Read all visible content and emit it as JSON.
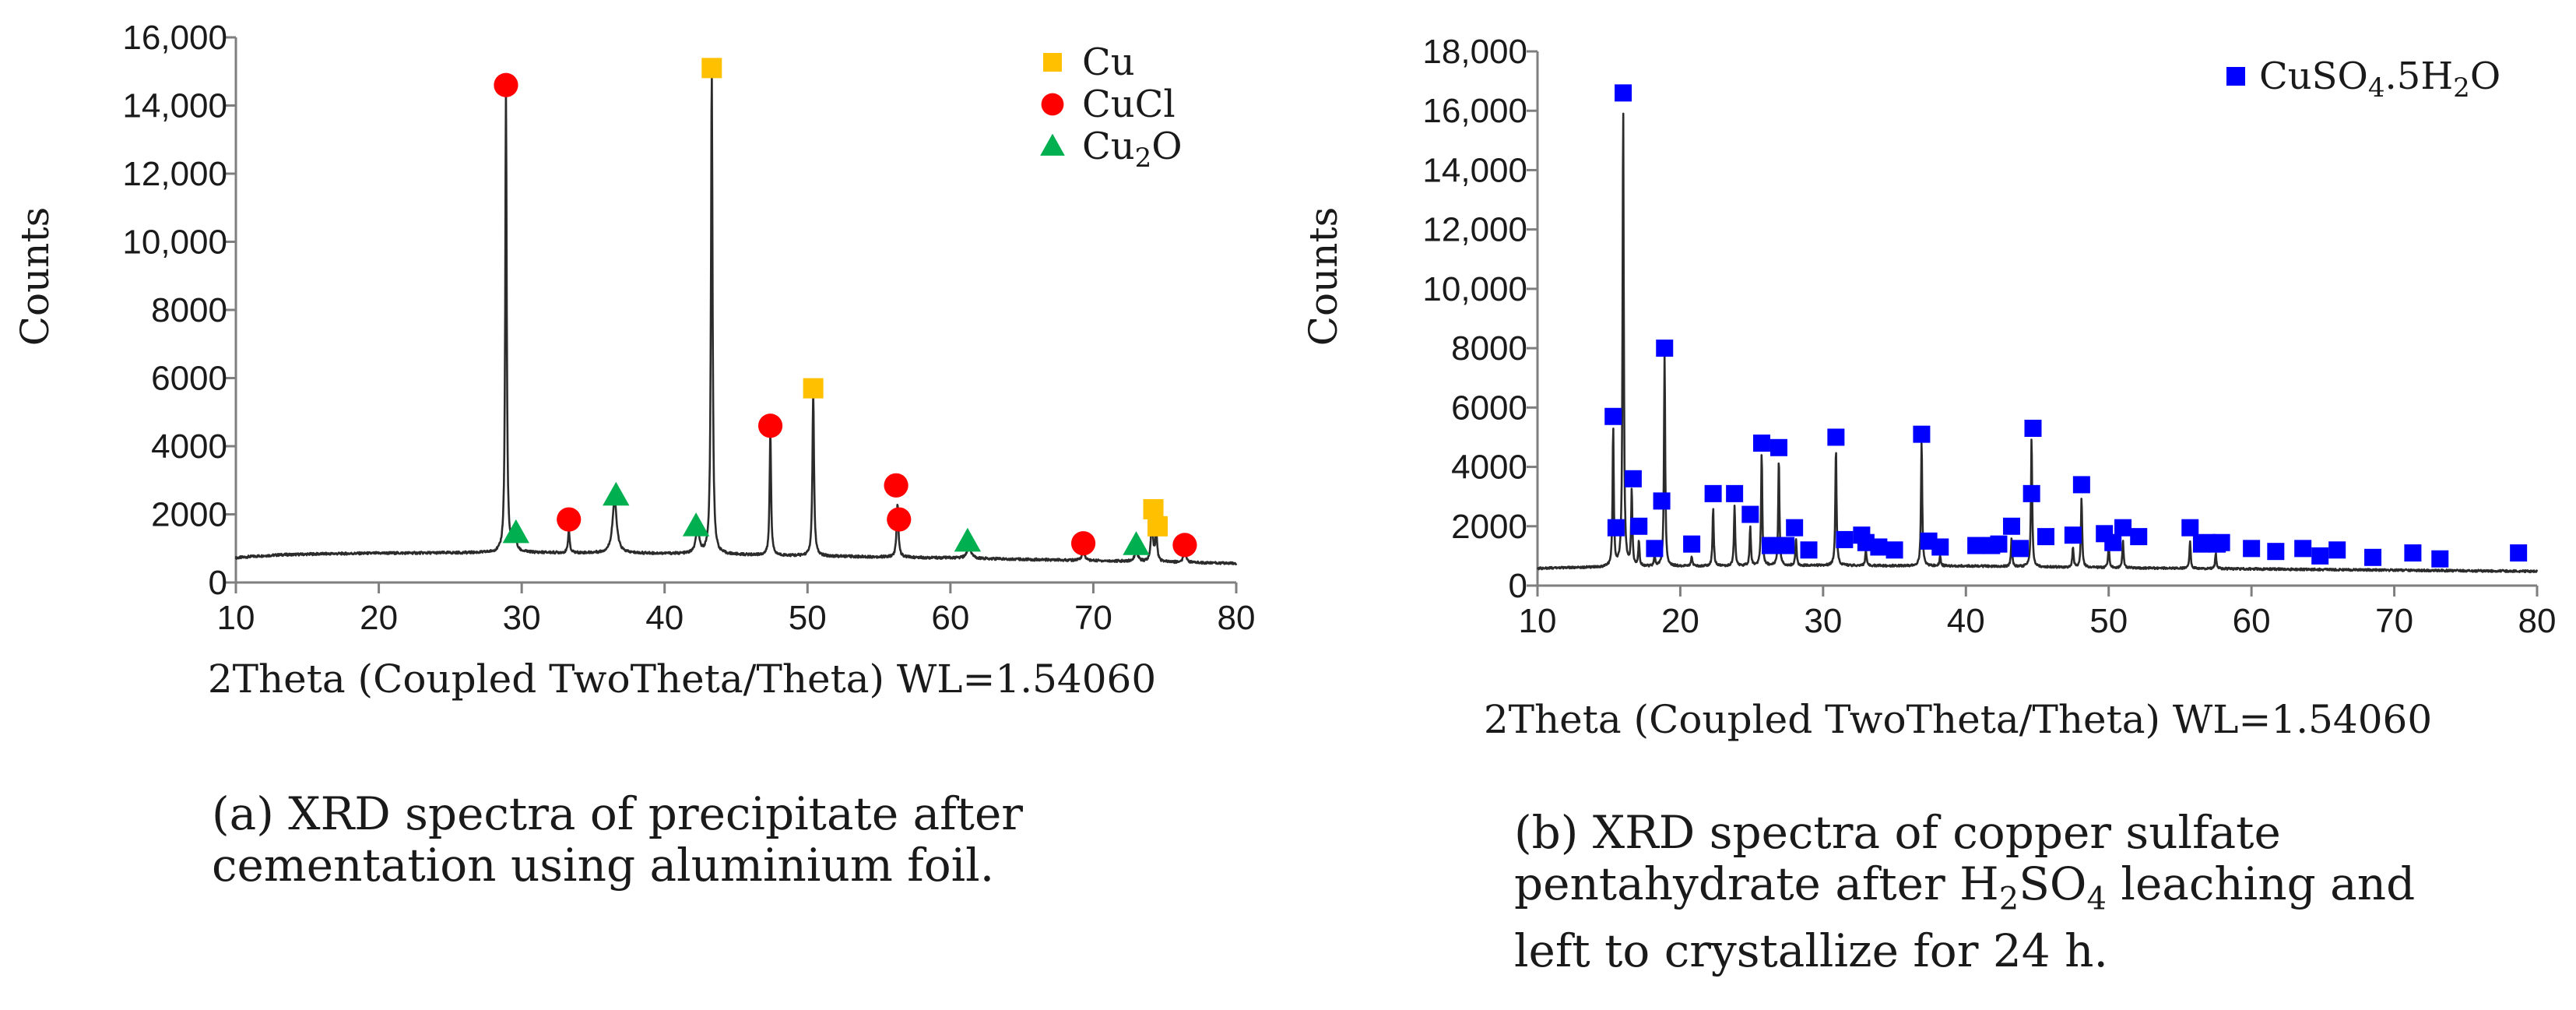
{
  "chart_data": [
    {
      "type": "line",
      "title": "",
      "xlabel": "2Theta (Coupled TwoTheta/Theta) WL=1.54060",
      "ylabel": "Counts",
      "xlim": [
        10,
        80
      ],
      "ylim": [
        0,
        16000
      ],
      "x_ticks": [
        10,
        20,
        30,
        40,
        50,
        60,
        70,
        80
      ],
      "x_tick_labels": [
        "10",
        "20",
        "30",
        "40",
        "50",
        "60",
        "70",
        "80"
      ],
      "y_ticks": [
        0,
        2000,
        4000,
        6000,
        8000,
        10000,
        12000,
        14000,
        16000
      ],
      "y_tick_labels": [
        "0",
        "2000",
        "4000",
        "6000",
        "8000",
        "10,000",
        "12,000",
        "14,000",
        "16,000"
      ],
      "grid": false,
      "legend_position": "top-right",
      "baseline": [
        [
          10,
          720
        ],
        [
          11,
          760
        ],
        [
          13,
          810
        ],
        [
          16,
          840
        ],
        [
          20,
          860
        ],
        [
          30,
          880
        ],
        [
          40,
          850
        ],
        [
          50,
          780
        ],
        [
          60,
          720
        ],
        [
          70,
          640
        ],
        [
          80,
          560
        ]
      ],
      "peaks": [
        {
          "x": 28.9,
          "y": 14600,
          "w": 0.12
        },
        {
          "x": 29.5,
          "y": 1400,
          "w": 0.25
        },
        {
          "x": 33.3,
          "y": 1600,
          "w": 0.12
        },
        {
          "x": 36.5,
          "y": 2450,
          "w": 0.35
        },
        {
          "x": 42.3,
          "y": 1500,
          "w": 0.3
        },
        {
          "x": 43.3,
          "y": 15100,
          "w": 0.13
        },
        {
          "x": 47.4,
          "y": 4500,
          "w": 0.12
        },
        {
          "x": 50.4,
          "y": 5600,
          "w": 0.13
        },
        {
          "x": 56.3,
          "y": 2300,
          "w": 0.15
        },
        {
          "x": 61.3,
          "y": 1100,
          "w": 0.3
        },
        {
          "x": 69.3,
          "y": 1000,
          "w": 0.2
        },
        {
          "x": 73.0,
          "y": 950,
          "w": 0.25
        },
        {
          "x": 74.1,
          "y": 1950,
          "w": 0.15
        },
        {
          "x": 74.4,
          "y": 1500,
          "w": 0.15
        },
        {
          "x": 76.4,
          "y": 950,
          "w": 0.2
        }
      ],
      "series": [
        {
          "name": "Cu",
          "marker": "square",
          "color": "#FFC000",
          "points": [
            [
              43.3,
              15100
            ],
            [
              50.4,
              5700
            ],
            [
              74.2,
              2150
            ],
            [
              74.5,
              1650
            ]
          ]
        },
        {
          "name": "CuCl",
          "marker": "circle",
          "color": "#FF0000",
          "points": [
            [
              28.9,
              14600
            ],
            [
              33.3,
              1850
            ],
            [
              47.4,
              4600
            ],
            [
              56.2,
              2850
            ],
            [
              56.4,
              1850
            ],
            [
              69.3,
              1150
            ],
            [
              76.4,
              1100
            ]
          ]
        },
        {
          "name": "Cu2O",
          "marker": "triangle",
          "color": "#00B050",
          "points": [
            [
              29.6,
              1450
            ],
            [
              36.6,
              2550
            ],
            [
              42.2,
              1650
            ],
            [
              61.2,
              1200
            ],
            [
              73.0,
              1100
            ]
          ]
        }
      ],
      "legend_labels": [
        {
          "base": "Cu",
          "sub": ""
        },
        {
          "base": "CuCl",
          "sub": ""
        },
        {
          "base": "Cu",
          "sub": "2",
          "tail": "O"
        }
      ]
    },
    {
      "type": "line",
      "title": "",
      "xlabel": "2Theta (Coupled TwoTheta/Theta) WL=1.54060",
      "ylabel": "Counts",
      "xlim": [
        10,
        80
      ],
      "ylim": [
        0,
        18000
      ],
      "x_ticks": [
        10,
        20,
        30,
        40,
        50,
        60,
        70,
        80
      ],
      "x_tick_labels": [
        "10",
        "20",
        "30",
        "40",
        "50",
        "60",
        "70",
        "80"
      ],
      "y_ticks": [
        0,
        2000,
        4000,
        6000,
        8000,
        10000,
        12000,
        14000,
        16000,
        18000
      ],
      "y_tick_labels": [
        "0",
        "2000",
        "4000",
        "6000",
        "8000",
        "10,000",
        "12,000",
        "14,000",
        "16,000",
        "18,000"
      ],
      "grid": false,
      "legend_position": "top-right",
      "baseline": [
        [
          10,
          580
        ],
        [
          12,
          600
        ],
        [
          15,
          620
        ],
        [
          20,
          650
        ],
        [
          30,
          680
        ],
        [
          40,
          660
        ],
        [
          50,
          600
        ],
        [
          60,
          560
        ],
        [
          70,
          520
        ],
        [
          80,
          480
        ]
      ],
      "peaks": [
        {
          "x": 15.3,
          "y": 5300,
          "w": 0.1
        },
        {
          "x": 16.0,
          "y": 16300,
          "w": 0.1
        },
        {
          "x": 16.6,
          "y": 3200,
          "w": 0.1
        },
        {
          "x": 17.1,
          "y": 1500,
          "w": 0.1
        },
        {
          "x": 18.2,
          "y": 1000,
          "w": 0.1
        },
        {
          "x": 18.9,
          "y": 7800,
          "w": 0.1
        },
        {
          "x": 20.8,
          "y": 1000,
          "w": 0.1
        },
        {
          "x": 22.3,
          "y": 2600,
          "w": 0.1
        },
        {
          "x": 23.8,
          "y": 2700,
          "w": 0.1
        },
        {
          "x": 24.9,
          "y": 2000,
          "w": 0.1
        },
        {
          "x": 25.7,
          "y": 4500,
          "w": 0.1
        },
        {
          "x": 26.9,
          "y": 4300,
          "w": 0.1
        },
        {
          "x": 28.1,
          "y": 1600,
          "w": 0.1
        },
        {
          "x": 30.9,
          "y": 4700,
          "w": 0.1
        },
        {
          "x": 33.0,
          "y": 1200,
          "w": 0.1
        },
        {
          "x": 36.9,
          "y": 4900,
          "w": 0.1
        },
        {
          "x": 38.2,
          "y": 1000,
          "w": 0.1
        },
        {
          "x": 43.2,
          "y": 1600,
          "w": 0.1
        },
        {
          "x": 44.6,
          "y": 5000,
          "w": 0.1
        },
        {
          "x": 47.5,
          "y": 1300,
          "w": 0.1
        },
        {
          "x": 48.1,
          "y": 3000,
          "w": 0.1
        },
        {
          "x": 50.0,
          "y": 1400,
          "w": 0.1
        },
        {
          "x": 51.0,
          "y": 1500,
          "w": 0.1
        },
        {
          "x": 55.7,
          "y": 1500,
          "w": 0.1
        },
        {
          "x": 57.5,
          "y": 1100,
          "w": 0.1
        }
      ],
      "series": [
        {
          "name": "CuSO4.5H2O",
          "marker": "square",
          "color": "#0000FF",
          "points": [
            [
              15.3,
              5700
            ],
            [
              15.5,
              1950
            ],
            [
              16.0,
              16600
            ],
            [
              16.7,
              3600
            ],
            [
              17.1,
              2000
            ],
            [
              18.2,
              1250
            ],
            [
              18.7,
              2850
            ],
            [
              18.9,
              8000
            ],
            [
              20.8,
              1400
            ],
            [
              22.3,
              3100
            ],
            [
              23.8,
              3100
            ],
            [
              24.9,
              2400
            ],
            [
              25.7,
              4800
            ],
            [
              26.3,
              1350
            ],
            [
              26.9,
              4650
            ],
            [
              27.4,
              1350
            ],
            [
              28.0,
              1950
            ],
            [
              29.0,
              1200
            ],
            [
              30.9,
              5000
            ],
            [
              31.5,
              1550
            ],
            [
              32.7,
              1700
            ],
            [
              33.0,
              1450
            ],
            [
              33.9,
              1300
            ],
            [
              35.0,
              1200
            ],
            [
              36.9,
              5100
            ],
            [
              37.4,
              1500
            ],
            [
              38.2,
              1300
            ],
            [
              40.7,
              1350
            ],
            [
              41.8,
              1350
            ],
            [
              42.3,
              1400
            ],
            [
              43.2,
              2000
            ],
            [
              43.8,
              1250
            ],
            [
              44.6,
              3100
            ],
            [
              44.7,
              5300
            ],
            [
              45.6,
              1650
            ],
            [
              47.5,
              1700
            ],
            [
              48.1,
              3400
            ],
            [
              49.7,
              1750
            ],
            [
              50.3,
              1450
            ],
            [
              51.0,
              1950
            ],
            [
              52.1,
              1650
            ],
            [
              55.7,
              1950
            ],
            [
              56.5,
              1400
            ],
            [
              56.9,
              1450
            ],
            [
              57.6,
              1400
            ],
            [
              57.9,
              1450
            ],
            [
              60.0,
              1250
            ],
            [
              61.7,
              1150
            ],
            [
              63.6,
              1250
            ],
            [
              64.8,
              1000
            ],
            [
              66.0,
              1200
            ],
            [
              68.5,
              950
            ],
            [
              71.3,
              1100
            ],
            [
              73.2,
              900
            ],
            [
              78.7,
              1100
            ]
          ]
        }
      ],
      "legend_labels": [
        {
          "base": "CuSO",
          "sub": "4",
          "tail": ".5H",
          "sub2": "2",
          "tail2": "O"
        }
      ]
    }
  ],
  "captions": {
    "a": [
      "(a) XRD spectra of precipitate after",
      "cementation using aluminium foil."
    ],
    "b_line1": "(b) XRD spectra of copper sulfate",
    "b_line2_pre": "pentahydrate after H",
    "b_line2_sub1": "2",
    "b_line2_mid": "SO",
    "b_line2_sub2": "4",
    "b_line2_post": " leaching and",
    "b_line3": "left to crystallize for 24 h."
  }
}
